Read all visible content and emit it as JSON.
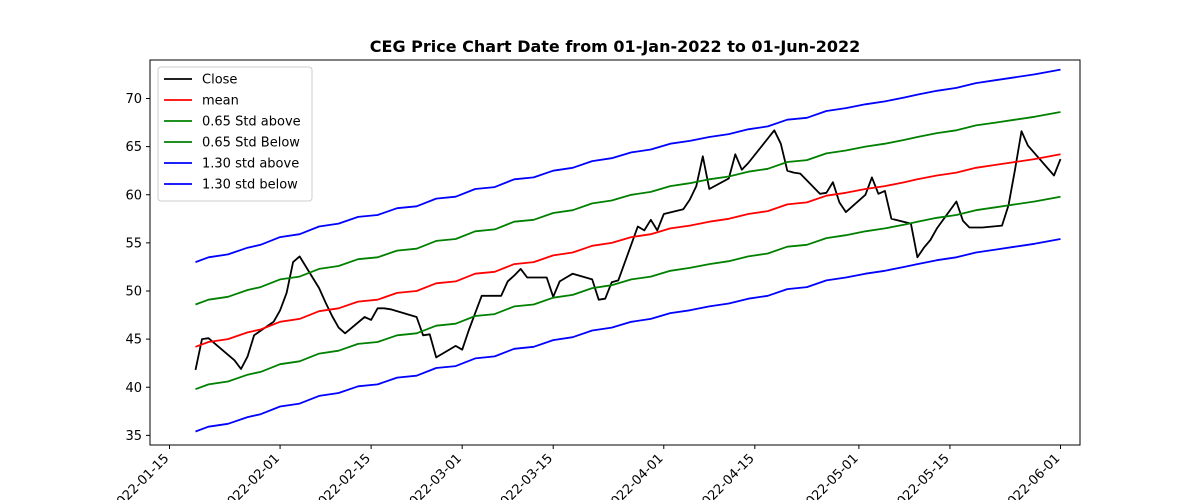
{
  "chart_data": {
    "type": "line",
    "title": "CEG Price Chart Date from 01-Jan-2022 to 01-Jun-2022",
    "xlabel": "",
    "ylabel": "",
    "xlim": [
      "2022-01-12",
      "2022-06-04"
    ],
    "ylim": [
      34,
      74
    ],
    "x_ticks": [
      "2022-01-15",
      "2022-02-01",
      "2022-02-15",
      "2022-03-01",
      "2022-03-15",
      "2022-04-01",
      "2022-04-15",
      "2022-05-01",
      "2022-05-15",
      "2022-06-01"
    ],
    "y_ticks": [
      35,
      40,
      45,
      50,
      55,
      60,
      65,
      70
    ],
    "grid": false,
    "legend_position": "top-left",
    "trend_dates": [
      "2022-01-19",
      "2022-01-21",
      "2022-01-24",
      "2022-01-27",
      "2022-01-29",
      "2022-02-01",
      "2022-02-04",
      "2022-02-07",
      "2022-02-10",
      "2022-02-13",
      "2022-02-16",
      "2022-02-19",
      "2022-02-22",
      "2022-02-25",
      "2022-02-28",
      "2022-03-03",
      "2022-03-06",
      "2022-03-09",
      "2022-03-12",
      "2022-03-15",
      "2022-03-18",
      "2022-03-21",
      "2022-03-24",
      "2022-03-27",
      "2022-03-30",
      "2022-04-02",
      "2022-04-05",
      "2022-04-08",
      "2022-04-11",
      "2022-04-14",
      "2022-04-17",
      "2022-04-20",
      "2022-04-23",
      "2022-04-26",
      "2022-04-29",
      "2022-05-02",
      "2022-05-05",
      "2022-05-08",
      "2022-05-10",
      "2022-05-13",
      "2022-05-16",
      "2022-05-19",
      "2022-05-22",
      "2022-05-25",
      "2022-05-28",
      "2022-06-01"
    ],
    "close_dates": [
      "2022-01-19",
      "2022-01-20",
      "2022-01-21",
      "2022-01-25",
      "2022-01-26",
      "2022-01-27",
      "2022-01-28",
      "2022-01-31",
      "2022-02-01",
      "2022-02-02",
      "2022-02-03",
      "2022-02-04",
      "2022-02-07",
      "2022-02-08",
      "2022-02-09",
      "2022-02-10",
      "2022-02-11",
      "2022-02-14",
      "2022-02-15",
      "2022-02-16",
      "2022-02-17",
      "2022-02-18",
      "2022-02-22",
      "2022-02-23",
      "2022-02-24",
      "2022-02-25",
      "2022-02-28",
      "2022-03-01",
      "2022-03-02",
      "2022-03-03",
      "2022-03-04",
      "2022-03-07",
      "2022-03-08",
      "2022-03-09",
      "2022-03-10",
      "2022-03-11",
      "2022-03-14",
      "2022-03-15",
      "2022-03-16",
      "2022-03-17",
      "2022-03-18",
      "2022-03-21",
      "2022-03-22",
      "2022-03-23",
      "2022-03-24",
      "2022-03-25",
      "2022-03-28",
      "2022-03-29",
      "2022-03-30",
      "2022-03-31",
      "2022-04-01",
      "2022-04-04",
      "2022-04-05",
      "2022-04-06",
      "2022-04-07",
      "2022-04-08",
      "2022-04-11",
      "2022-04-12",
      "2022-04-13",
      "2022-04-14",
      "2022-04-18",
      "2022-04-19",
      "2022-04-20",
      "2022-04-21",
      "2022-04-22",
      "2022-04-25",
      "2022-04-26",
      "2022-04-27",
      "2022-04-28",
      "2022-04-29",
      "2022-05-02",
      "2022-05-03",
      "2022-05-04",
      "2022-05-05",
      "2022-05-06",
      "2022-05-09",
      "2022-05-10",
      "2022-05-11",
      "2022-05-12",
      "2022-05-13",
      "2022-05-16",
      "2022-05-17",
      "2022-05-18",
      "2022-05-19",
      "2022-05-20",
      "2022-05-23",
      "2022-05-24",
      "2022-05-25",
      "2022-05-26",
      "2022-05-27",
      "2022-05-31",
      "2022-06-01"
    ],
    "series": [
      {
        "name": "Close",
        "color": "#000000",
        "values": [
          41.8,
          45.0,
          45.1,
          42.8,
          41.9,
          43.2,
          45.4,
          46.8,
          48.0,
          49.8,
          53.0,
          53.6,
          50.3,
          48.8,
          47.4,
          46.2,
          45.6,
          47.3,
          47.0,
          48.2,
          48.2,
          48.1,
          47.3,
          45.4,
          45.5,
          43.1,
          44.3,
          43.9,
          45.9,
          47.7,
          49.5,
          49.5,
          51.0,
          51.6,
          52.3,
          51.4,
          51.4,
          49.4,
          51.0,
          51.4,
          51.8,
          51.2,
          49.1,
          49.2,
          50.9,
          51.1,
          56.7,
          56.3,
          57.4,
          56.3,
          58.0,
          58.5,
          59.5,
          60.9,
          64.0,
          60.6,
          61.7,
          64.2,
          62.6,
          63.3,
          66.7,
          65.3,
          62.5,
          62.3,
          62.2,
          60.1,
          60.2,
          61.3,
          59.2,
          58.2,
          60.0,
          61.8,
          60.1,
          60.4,
          57.5,
          57.0,
          53.5,
          54.5,
          55.3,
          56.5,
          59.3,
          57.3,
          56.6,
          56.6,
          56.6,
          56.8,
          58.9,
          62.6,
          66.6,
          65.1,
          62.0,
          63.7
        ]
      },
      {
        "name": "mean",
        "color": "#ff0000",
        "values": [
          44.2,
          44.7,
          45.0,
          45.7,
          46.0,
          46.8,
          47.1,
          47.9,
          48.2,
          48.9,
          49.1,
          49.8,
          50.0,
          50.8,
          51.0,
          51.8,
          52.0,
          52.8,
          53.0,
          53.7,
          54.0,
          54.7,
          55.0,
          55.6,
          55.9,
          56.5,
          56.8,
          57.2,
          57.5,
          58.0,
          58.3,
          59.0,
          59.2,
          59.9,
          60.2,
          60.6,
          60.9,
          61.3,
          61.6,
          62.0,
          62.3,
          62.8,
          63.1,
          63.4,
          63.7,
          64.2
        ]
      },
      {
        "name": "0.65 Std above",
        "color": "#008000",
        "values": [
          48.6,
          49.1,
          49.4,
          50.1,
          50.4,
          51.2,
          51.5,
          52.3,
          52.6,
          53.3,
          53.5,
          54.2,
          54.4,
          55.2,
          55.4,
          56.2,
          56.4,
          57.2,
          57.4,
          58.1,
          58.4,
          59.1,
          59.4,
          60.0,
          60.3,
          60.9,
          61.2,
          61.6,
          61.9,
          62.4,
          62.7,
          63.4,
          63.6,
          64.3,
          64.6,
          65.0,
          65.3,
          65.7,
          66.0,
          66.4,
          66.7,
          67.2,
          67.5,
          67.8,
          68.1,
          68.6
        ]
      },
      {
        "name": "0.65 Std Below",
        "color": "#008000",
        "values": [
          39.8,
          40.3,
          40.6,
          41.3,
          41.6,
          42.4,
          42.7,
          43.5,
          43.8,
          44.5,
          44.7,
          45.4,
          45.6,
          46.4,
          46.6,
          47.4,
          47.6,
          48.4,
          48.6,
          49.3,
          49.6,
          50.3,
          50.6,
          51.2,
          51.5,
          52.1,
          52.4,
          52.8,
          53.1,
          53.6,
          53.9,
          54.6,
          54.8,
          55.5,
          55.8,
          56.2,
          56.5,
          56.9,
          57.2,
          57.6,
          57.9,
          58.4,
          58.7,
          59.0,
          59.3,
          59.8
        ]
      },
      {
        "name": "1.30 std above",
        "color": "#0000ff",
        "values": [
          53.0,
          53.5,
          53.8,
          54.5,
          54.8,
          55.6,
          55.9,
          56.7,
          57.0,
          57.7,
          57.9,
          58.6,
          58.8,
          59.6,
          59.8,
          60.6,
          60.8,
          61.6,
          61.8,
          62.5,
          62.8,
          63.5,
          63.8,
          64.4,
          64.7,
          65.3,
          65.6,
          66.0,
          66.3,
          66.8,
          67.1,
          67.8,
          68.0,
          68.7,
          69.0,
          69.4,
          69.7,
          70.1,
          70.4,
          70.8,
          71.1,
          71.6,
          71.9,
          72.2,
          72.5,
          73.0
        ]
      },
      {
        "name": "1.30 std below",
        "color": "#0000ff",
        "values": [
          35.4,
          35.9,
          36.2,
          36.9,
          37.2,
          38.0,
          38.3,
          39.1,
          39.4,
          40.1,
          40.3,
          41.0,
          41.2,
          42.0,
          42.2,
          43.0,
          43.2,
          44.0,
          44.2,
          44.9,
          45.2,
          45.9,
          46.2,
          46.8,
          47.1,
          47.7,
          48.0,
          48.4,
          48.7,
          49.2,
          49.5,
          50.2,
          50.4,
          51.1,
          51.4,
          51.8,
          52.1,
          52.5,
          52.8,
          53.2,
          53.5,
          54.0,
          54.3,
          54.6,
          54.9,
          55.4
        ]
      }
    ]
  }
}
